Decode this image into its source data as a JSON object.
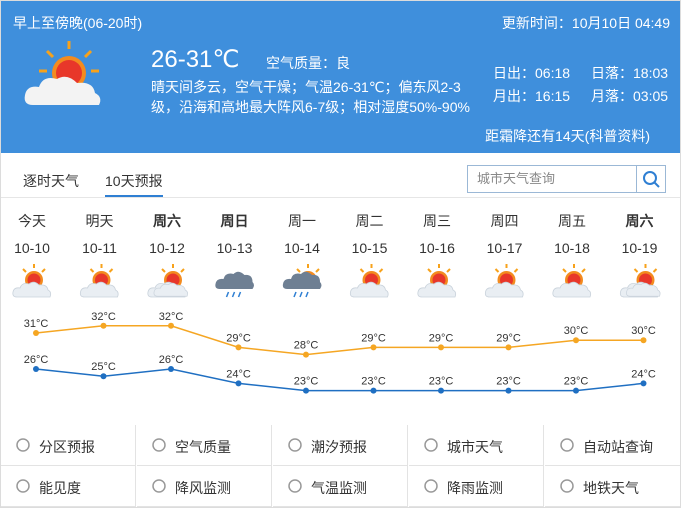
{
  "header": {
    "period": "早上至傍晚(06-20时)",
    "update_time": "更新时间：10月10日 04:49",
    "temperature": "26-31℃",
    "air_quality": "空气质量：良",
    "description": [
      "晴天间多云，空气干燥；气温26-31℃；偏东风2-3",
      "级，沿海和高地最大阵风6-7级；相对湿度50%-90%"
    ],
    "sunrise": "日出：06:18",
    "sunset": "日落：18:03",
    "moonrise": "月出：16:15",
    "moonset": "月落：03:05",
    "solar_term": "距霜降还有14天(科普资料)"
  },
  "tabs": [
    "逐时天气",
    "10天预报"
  ],
  "search_placeholder": "城市天气查询",
  "forecast": {
    "days": [
      "今天",
      "明天",
      "周六",
      "周日",
      "周一",
      "周二",
      "周三",
      "周四",
      "周五",
      "周六"
    ],
    "dates": [
      "10-10",
      "10-11",
      "10-12",
      "10-13",
      "10-14",
      "10-15",
      "10-16",
      "10-17",
      "10-18",
      "10-19"
    ],
    "high": [
      31,
      32,
      32,
      29,
      28,
      29,
      29,
      29,
      30,
      30
    ],
    "high_labels": [
      "31°C",
      "32°C",
      "32°C",
      "29°C",
      "28°C",
      "29°C",
      "29°C",
      "29°C",
      "30°C",
      "30°C"
    ],
    "low": [
      26,
      25,
      26,
      24,
      23,
      23,
      23,
      23,
      23,
      24
    ],
    "low_labels": [
      "26°C",
      "25°C",
      "26°C",
      "24°C",
      "23°C",
      "23°C",
      "23°C",
      "23°C",
      "23°C",
      "24°C"
    ],
    "high_color": "#f5a623",
    "low_color": "#1f6fc2"
  },
  "links": [
    [
      "分区预报",
      "空气质量",
      "潮汐预报",
      "城市天气",
      "自动站查询"
    ],
    [
      "能见度",
      "降风监测",
      "气温监测",
      "降雨监测",
      "地铁天气"
    ]
  ]
}
